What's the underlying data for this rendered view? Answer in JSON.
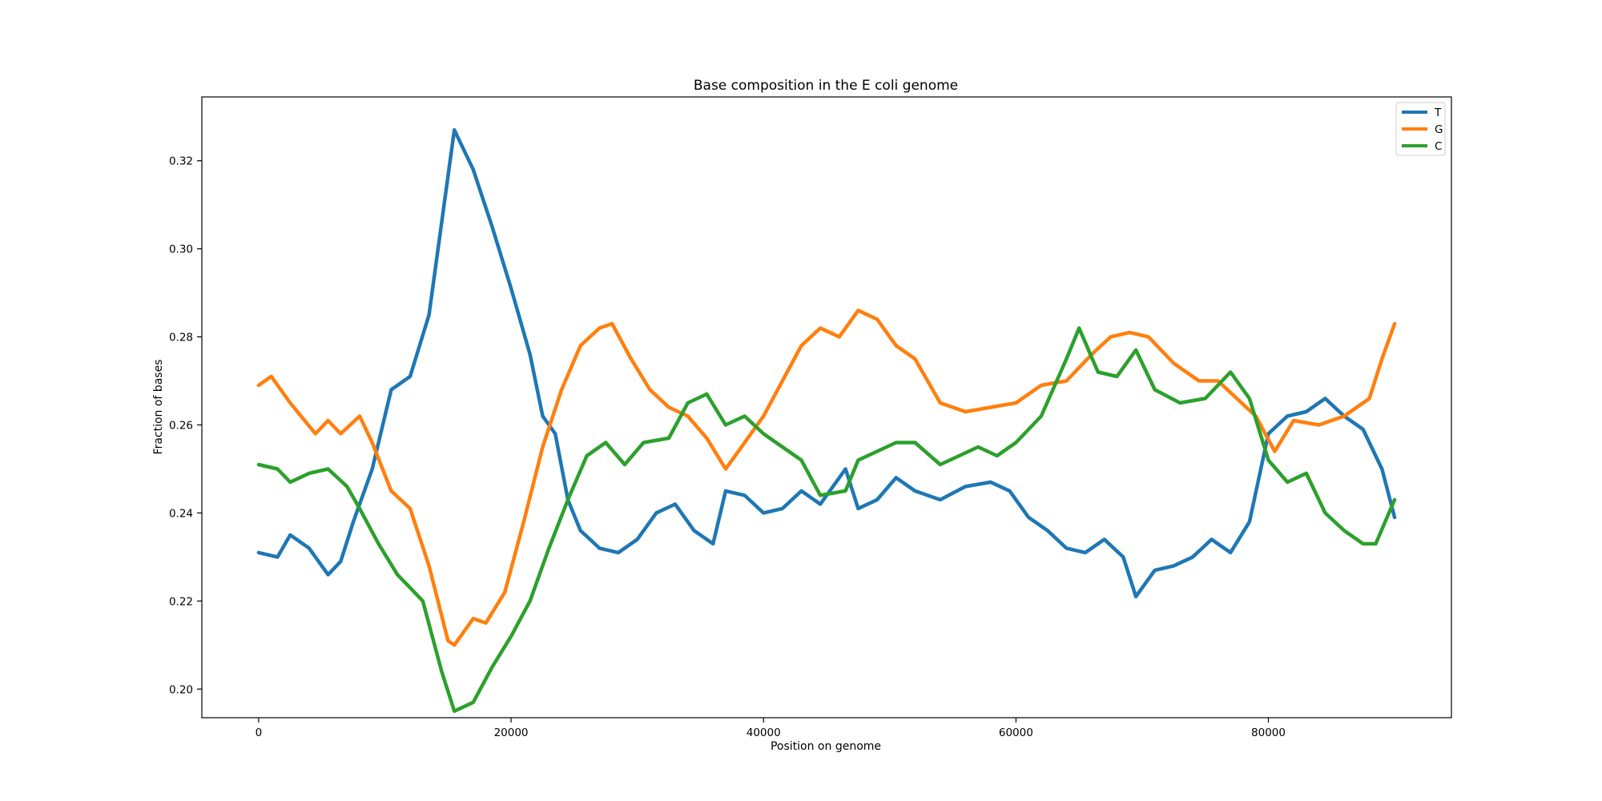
{
  "chart_data": {
    "type": "line",
    "title": "Base composition in the E coli genome",
    "xlabel": "Position on genome",
    "ylabel": "Fraction of bases",
    "xlim": [
      -4500,
      94500
    ],
    "ylim": [
      0.1935,
      0.3345
    ],
    "xticks": [
      0,
      20000,
      40000,
      60000,
      80000
    ],
    "yticks": [
      0.2,
      0.22,
      0.24,
      0.26,
      0.28,
      0.3,
      0.32
    ],
    "xtick_labels": [
      "0",
      "20000",
      "40000",
      "60000",
      "80000"
    ],
    "ytick_labels": [
      "0.20",
      "0.22",
      "0.24",
      "0.26",
      "0.28",
      "0.30",
      "0.32"
    ],
    "grid": false,
    "legend": "top-right",
    "series": [
      {
        "name": "T",
        "color": "#1f77b4",
        "x": [
          0,
          1500,
          2500,
          4000,
          5500,
          6500,
          7500,
          9000,
          10500,
          12000,
          13500,
          15500,
          17000,
          18500,
          20000,
          21500,
          22500,
          23500,
          24500,
          25500,
          27000,
          28500,
          30000,
          31500,
          33000,
          34500,
          36000,
          37000,
          38500,
          40000,
          41500,
          43000,
          44500,
          46500,
          47500,
          49000,
          50500,
          52000,
          54000,
          56000,
          58000,
          59500,
          61000,
          62500,
          64000,
          65500,
          67000,
          68500,
          69500,
          71000,
          72500,
          74000,
          75500,
          77000,
          78500,
          80000,
          81500,
          83000,
          84500,
          86000,
          87500,
          89000,
          90000
        ],
        "y": [
          0.231,
          0.23,
          0.235,
          0.232,
          0.226,
          0.229,
          0.238,
          0.25,
          0.268,
          0.271,
          0.285,
          0.327,
          0.318,
          0.305,
          0.291,
          0.276,
          0.262,
          0.258,
          0.243,
          0.236,
          0.232,
          0.231,
          0.234,
          0.24,
          0.242,
          0.236,
          0.233,
          0.245,
          0.244,
          0.24,
          0.241,
          0.245,
          0.242,
          0.25,
          0.241,
          0.243,
          0.248,
          0.245,
          0.243,
          0.246,
          0.247,
          0.245,
          0.239,
          0.236,
          0.232,
          0.231,
          0.234,
          0.23,
          0.221,
          0.227,
          0.228,
          0.23,
          0.234,
          0.231,
          0.238,
          0.258,
          0.262,
          0.263,
          0.266,
          0.262,
          0.259,
          0.25,
          0.239
        ]
      },
      {
        "name": "G",
        "color": "#ff7f0e",
        "x": [
          0,
          1000,
          2500,
          4500,
          5500,
          6500,
          8000,
          9000,
          10500,
          12000,
          13500,
          15000,
          15500,
          17000,
          18000,
          19500,
          21000,
          22500,
          24000,
          25500,
          27000,
          28000,
          29500,
          31000,
          32500,
          34000,
          35500,
          37000,
          38500,
          40000,
          41500,
          43000,
          44500,
          46000,
          47500,
          49000,
          50500,
          52000,
          54000,
          56000,
          58000,
          60000,
          62000,
          64000,
          66000,
          67500,
          69000,
          70500,
          72500,
          74500,
          76000,
          77500,
          79000,
          80500,
          82000,
          84000,
          86000,
          88000,
          89000,
          90000
        ],
        "y": [
          0.269,
          0.271,
          0.265,
          0.258,
          0.261,
          0.258,
          0.262,
          0.256,
          0.245,
          0.241,
          0.228,
          0.211,
          0.21,
          0.216,
          0.215,
          0.222,
          0.238,
          0.255,
          0.268,
          0.278,
          0.282,
          0.283,
          0.275,
          0.268,
          0.264,
          0.262,
          0.257,
          0.25,
          0.256,
          0.262,
          0.27,
          0.278,
          0.282,
          0.28,
          0.286,
          0.284,
          0.278,
          0.275,
          0.265,
          0.263,
          0.264,
          0.265,
          0.269,
          0.27,
          0.276,
          0.28,
          0.281,
          0.28,
          0.274,
          0.27,
          0.27,
          0.266,
          0.262,
          0.254,
          0.261,
          0.26,
          0.262,
          0.266,
          0.275,
          0.283
        ]
      },
      {
        "name": "C",
        "color": "#2ca02c",
        "x": [
          0,
          1500,
          2500,
          4000,
          5500,
          7000,
          8000,
          9500,
          11000,
          13000,
          14500,
          15500,
          17000,
          18500,
          20000,
          21500,
          23000,
          24500,
          26000,
          27500,
          29000,
          30500,
          32500,
          34000,
          35500,
          37000,
          38500,
          40000,
          41500,
          43000,
          44500,
          46500,
          47500,
          49000,
          50500,
          52000,
          54000,
          55500,
          57000,
          58500,
          60000,
          62000,
          64000,
          65000,
          66500,
          68000,
          69500,
          71000,
          73000,
          75000,
          77000,
          78500,
          80000,
          81500,
          83000,
          84500,
          86000,
          87500,
          88500,
          90000
        ],
        "y": [
          0.251,
          0.25,
          0.247,
          0.249,
          0.25,
          0.246,
          0.241,
          0.233,
          0.226,
          0.22,
          0.204,
          0.195,
          0.197,
          0.205,
          0.212,
          0.22,
          0.232,
          0.243,
          0.253,
          0.256,
          0.251,
          0.256,
          0.257,
          0.265,
          0.267,
          0.26,
          0.262,
          0.258,
          0.255,
          0.252,
          0.244,
          0.245,
          0.252,
          0.254,
          0.256,
          0.256,
          0.251,
          0.253,
          0.255,
          0.253,
          0.256,
          0.262,
          0.275,
          0.282,
          0.272,
          0.271,
          0.277,
          0.268,
          0.265,
          0.266,
          0.272,
          0.266,
          0.252,
          0.247,
          0.249,
          0.24,
          0.236,
          0.233,
          0.233,
          0.243
        ]
      }
    ]
  }
}
